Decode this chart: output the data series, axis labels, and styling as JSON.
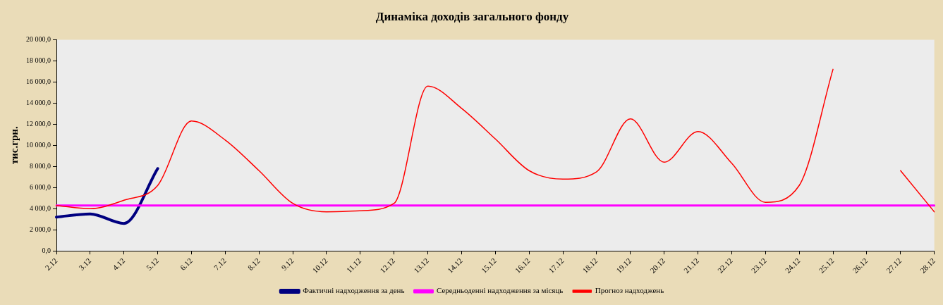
{
  "chart_data": {
    "type": "line",
    "title": "Динаміка доходів загального фонду",
    "ylabel": "тис.грн.",
    "categories": [
      "2.12",
      "3.12",
      "4.12",
      "5.12",
      "6.12",
      "7.12",
      "8.12",
      "9.12",
      "10.12",
      "11.12",
      "12.12",
      "13.12",
      "14.12",
      "15.12",
      "16.12",
      "17.12",
      "18.12",
      "19.12",
      "20.12",
      "21.12",
      "22.12",
      "23.12",
      "24.12",
      "25.12",
      "26.12",
      "27.12",
      "28.12"
    ],
    "series": [
      {
        "name": "Фактичні надходження за день",
        "color": "#000080",
        "values": [
          3200,
          3500,
          2600,
          7800,
          null,
          null,
          null,
          null,
          null,
          null,
          null,
          null,
          null,
          null,
          null,
          null,
          null,
          null,
          null,
          null,
          null,
          null,
          null,
          null,
          null,
          null,
          null
        ]
      },
      {
        "name": "Середньоденні надходження за місяць",
        "color": "#ff00ff",
        "values": [
          4300,
          4300,
          4300,
          4300,
          4300,
          4300,
          4300,
          4300,
          4300,
          4300,
          4300,
          4300,
          4300,
          4300,
          4300,
          4300,
          4300,
          4300,
          4300,
          4300,
          4300,
          4300,
          4300,
          4300,
          4300,
          4300,
          4300
        ]
      },
      {
        "name": "Прогноз надходжень",
        "color": "#ff0000",
        "values": [
          4300,
          4000,
          4800,
          6200,
          12300,
          10500,
          7600,
          4500,
          3700,
          3800,
          4500,
          15600,
          13500,
          10600,
          7600,
          6800,
          7500,
          12500,
          8400,
          11300,
          8300,
          4600,
          6200,
          17200,
          null,
          7600,
          3700
        ]
      }
    ],
    "ylim": [
      0,
      20000
    ],
    "yticks": [
      {
        "value": 0,
        "label": "0,0"
      },
      {
        "value": 2000,
        "label": "2 000,0"
      },
      {
        "value": 4000,
        "label": "4 000,0"
      },
      {
        "value": 6000,
        "label": "6 000,0"
      },
      {
        "value": 8000,
        "label": "8 000,0"
      },
      {
        "value": 10000,
        "label": "10 000,0"
      },
      {
        "value": 12000,
        "label": "12 000,0"
      },
      {
        "value": 14000,
        "label": "14 000,0"
      },
      {
        "value": 16000,
        "label": "16 000,0"
      },
      {
        "value": 18000,
        "label": "18 000,0"
      },
      {
        "value": 20000,
        "label": "20 000,0"
      }
    ],
    "grid": false,
    "legend": "bottom",
    "marker": "none",
    "line_style": "solid"
  }
}
